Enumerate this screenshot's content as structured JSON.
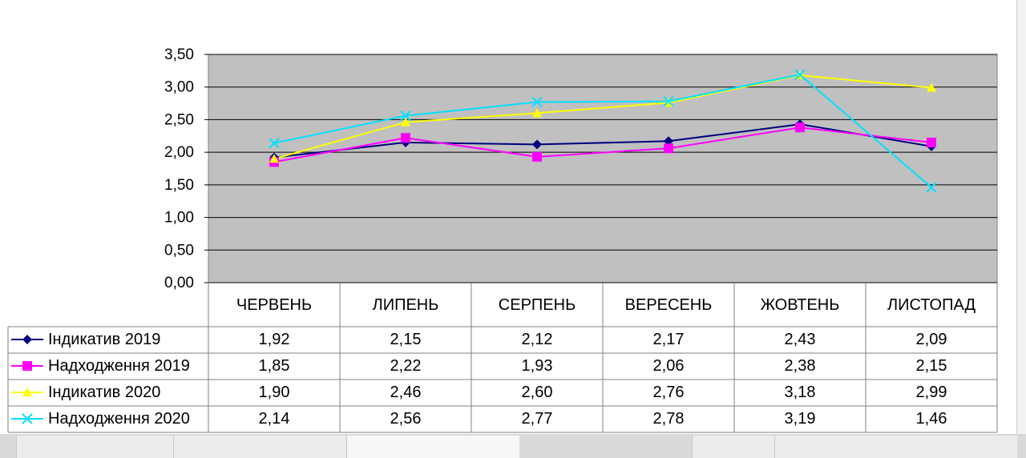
{
  "chart_data": {
    "type": "line",
    "categories": [
      "ЧЕРВЕНЬ",
      "ЛИПЕНЬ",
      "СЕРПЕНЬ",
      "ВЕРЕСЕНЬ",
      "ЖОВТЕНЬ",
      "ЛИСТОПАД"
    ],
    "ylim": [
      0,
      3.5
    ],
    "yticks": [
      "0,00",
      "0,50",
      "1,00",
      "1,50",
      "2,00",
      "2,50",
      "3,00",
      "3,50"
    ],
    "grid": true,
    "data_table": true,
    "series": [
      {
        "name": "Індикатив 2019",
        "color": "#000080",
        "marker": "diamond",
        "values": [
          1.92,
          2.15,
          2.12,
          2.17,
          2.43,
          2.09
        ],
        "labels": [
          "1,92",
          "2,15",
          "2,12",
          "2,17",
          "2,43",
          "2,09"
        ]
      },
      {
        "name": "Надходження 2019",
        "color": "#ff00ff",
        "marker": "square",
        "values": [
          1.85,
          2.22,
          1.93,
          2.06,
          2.38,
          2.15
        ],
        "labels": [
          "1,85",
          "2,22",
          "1,93",
          "2,06",
          "2,38",
          "2,15"
        ]
      },
      {
        "name": "Індикатив 2020",
        "color": "#ffff00",
        "marker": "triangle",
        "values": [
          1.9,
          2.46,
          2.6,
          2.76,
          3.18,
          2.99
        ],
        "labels": [
          "1,90",
          "2,46",
          "2,60",
          "2,76",
          "3,18",
          "2,99"
        ]
      },
      {
        "name": "Надходження 2020",
        "color": "#00e0ff",
        "marker": "x",
        "values": [
          2.14,
          2.56,
          2.77,
          2.78,
          3.19,
          1.46
        ],
        "labels": [
          "2,14",
          "2,56",
          "2,77",
          "2,78",
          "3,19",
          "1,46"
        ]
      }
    ]
  }
}
